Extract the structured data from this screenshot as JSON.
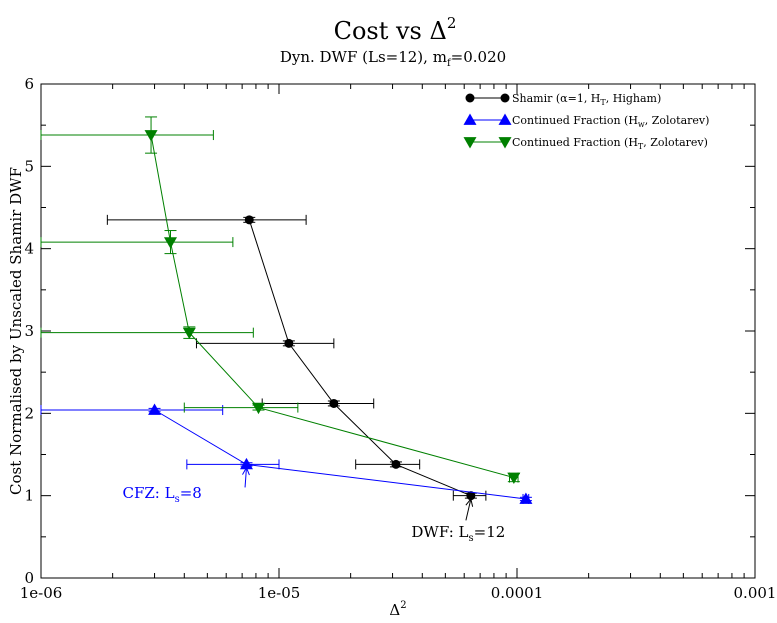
{
  "chart_data": {
    "type": "scatter",
    "title": "Cost vs Δ",
    "title_sup": "2",
    "subtitle_pre": "Dyn. DWF (Ls=12), m",
    "subtitle_sub": "f",
    "subtitle_post": "=0.020",
    "xlabel": "Δ",
    "xlabel_sup": "2",
    "ylabel": "Cost Normalised by Unscaled Shamir DWF",
    "x_scale": "log",
    "xlim": [
      1e-06,
      0.001
    ],
    "ylim": [
      0,
      6
    ],
    "x_ticks": [
      {
        "value": 1e-06,
        "label": "1e-06"
      },
      {
        "value": 1e-05,
        "label": "1e-05"
      },
      {
        "value": 0.0001,
        "label": "0.0001"
      },
      {
        "value": 0.001,
        "label": "0.001"
      }
    ],
    "y_ticks": [
      {
        "value": 0,
        "label": "0"
      },
      {
        "value": 1,
        "label": "1"
      },
      {
        "value": 2,
        "label": "2"
      },
      {
        "value": 3,
        "label": "3"
      },
      {
        "value": 4,
        "label": "4"
      },
      {
        "value": 5,
        "label": "5"
      },
      {
        "value": 6,
        "label": "6"
      }
    ],
    "legend_position": "top-right",
    "series": [
      {
        "legend": [
          {
            "t": "Shamir (α=1, H",
            "s": ""
          },
          {
            "t": "T",
            "s": "sub"
          },
          {
            "t": ", Higham)",
            "s": ""
          }
        ],
        "color": "#000000",
        "marker": "circle",
        "points": [
          {
            "x": 7.5e-06,
            "y": 4.35,
            "xerr": [
              1.9e-06,
              1.3e-05
            ],
            "yerr": 0.03
          },
          {
            "x": 1.1e-05,
            "y": 2.85,
            "xerr": [
              4.5e-06,
              1.7e-05
            ],
            "yerr": 0.03
          },
          {
            "x": 1.7e-05,
            "y": 2.12,
            "xerr": [
              8.5e-06,
              2.5e-05
            ],
            "yerr": 0.03
          },
          {
            "x": 3.1e-05,
            "y": 1.38,
            "xerr": [
              2.1e-05,
              3.9e-05
            ],
            "yerr": 0.03
          },
          {
            "x": 6.4e-05,
            "y": 1.0,
            "xerr": [
              5.4e-05,
              7.4e-05
            ],
            "yerr": 0.03
          }
        ]
      },
      {
        "legend": [
          {
            "t": "Continued Fraction (H",
            "s": ""
          },
          {
            "t": "w",
            "s": "sub"
          },
          {
            "t": ", Zolotarev)",
            "s": ""
          }
        ],
        "color": "#0000ff",
        "marker": "triangle-up",
        "points": [
          {
            "x": 3e-06,
            "y": 2.04,
            "xerr": [
              1e-06,
              5.8e-06
            ],
            "yerr": 0.02
          },
          {
            "x": 7.3e-06,
            "y": 1.38,
            "xerr": [
              4.1e-06,
              1e-05
            ],
            "yerr": 0.02
          },
          {
            "x": 0.000109,
            "y": 0.96,
            "xerr": [
              0.000106,
              0.000112
            ],
            "yerr": 0.02
          }
        ]
      },
      {
        "legend": [
          {
            "t": "Continued Fraction (H",
            "s": ""
          },
          {
            "t": "T",
            "s": "sub"
          },
          {
            "t": ", Zolotarev)",
            "s": ""
          }
        ],
        "color": "#008000",
        "marker": "triangle-down",
        "points": [
          {
            "x": 2.9e-06,
            "y": 5.38,
            "xerr": [
              1e-06,
              5.3e-06
            ],
            "yerr": 0.22
          },
          {
            "x": 3.5e-06,
            "y": 4.08,
            "xerr": [
              1e-06,
              6.4e-06
            ],
            "yerr": 0.14
          },
          {
            "x": 4.2e-06,
            "y": 2.98,
            "xerr": [
              1e-06,
              7.8e-06
            ],
            "yerr": 0.07
          },
          {
            "x": 8.2e-06,
            "y": 2.07,
            "xerr": [
              4e-06,
              1.2e-05
            ],
            "yerr": 0.03
          },
          {
            "x": 9.7e-05,
            "y": 1.22,
            "xerr": [
              9.3e-05,
              0.000101
            ],
            "yerr": 0.05
          }
        ]
      }
    ],
    "annotations": [
      {
        "pre": "CFZ: L",
        "sub": "s",
        "post": "=8",
        "color": "#0000ff",
        "text_at": {
          "x": 2.2e-06,
          "y": 0.97
        },
        "arrow_from": {
          "x": 7.2e-06,
          "y": 1.1
        },
        "arrow_to": {
          "x": 7.3e-06,
          "y": 1.34
        }
      },
      {
        "pre": "DWF: L",
        "sub": "s",
        "post": "=12",
        "color": "#000000",
        "text_at": {
          "x": 3.6e-05,
          "y": 0.5
        },
        "arrow_from": {
          "x": 6.1e-05,
          "y": 0.7
        },
        "arrow_to": {
          "x": 6.4e-05,
          "y": 0.96
        }
      }
    ]
  }
}
